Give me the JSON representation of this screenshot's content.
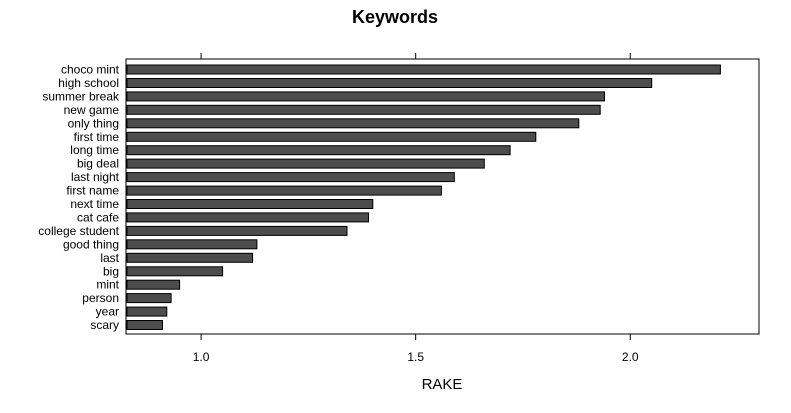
{
  "chart_data": {
    "type": "bar",
    "orientation": "horizontal",
    "title": "Keywords",
    "xlabel": "RAKE",
    "ylabel": "",
    "xlim": [
      0.825,
      2.3
    ],
    "xticks": [
      1.0,
      1.5,
      2.0
    ],
    "xtick_labels": [
      "1.0",
      "1.5",
      "2.0"
    ],
    "grid": false,
    "legend": "none",
    "bar_color": "#4d4d4d",
    "categories": [
      "choco mint",
      "high school",
      "summer break",
      "new game",
      "only thing",
      "first time",
      "long time",
      "big deal",
      "last night",
      "first name",
      "next time",
      "cat cafe",
      "college student",
      "good thing",
      "last",
      "big",
      "mint",
      "person",
      "year",
      "scary"
    ],
    "values": [
      2.21,
      2.05,
      1.94,
      1.93,
      1.88,
      1.78,
      1.72,
      1.66,
      1.59,
      1.56,
      1.4,
      1.39,
      1.34,
      1.13,
      1.12,
      1.05,
      0.95,
      0.93,
      0.92,
      0.91
    ]
  }
}
